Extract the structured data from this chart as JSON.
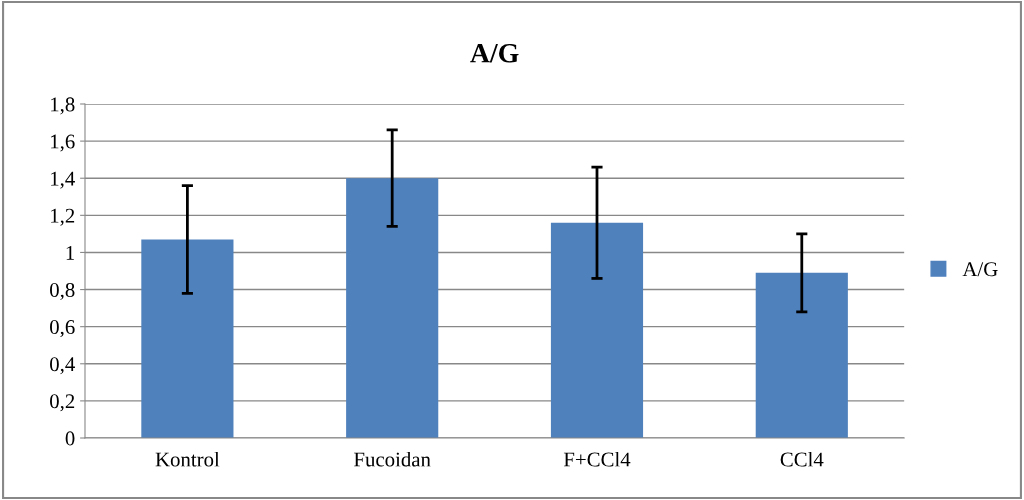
{
  "chart_data": {
    "type": "bar",
    "title": "A/G",
    "categories": [
      "Kontrol",
      "Fucoidan",
      "F+CCl4",
      "CCl4"
    ],
    "series": [
      {
        "name": "A/G",
        "color": "#4f81bd",
        "values": [
          1.07,
          1.4,
          1.16,
          0.89
        ],
        "errors": [
          0.29,
          0.26,
          0.3,
          0.21
        ]
      }
    ],
    "ylim": [
      0,
      1.8
    ],
    "yticks": [
      0,
      {
        "value": 0.2,
        "label": "0,2"
      },
      {
        "value": 0.4,
        "label": "0,4"
      },
      {
        "value": 0.6,
        "label": "0,6"
      },
      {
        "value": 0.8,
        "label": "0,8"
      },
      1,
      {
        "value": 1.2,
        "label": "1,2"
      },
      {
        "value": 1.4,
        "label": "1,4"
      },
      {
        "value": 1.6,
        "label": "1,6"
      },
      {
        "value": 1.8,
        "label": "1,8"
      }
    ],
    "grid": "y",
    "legend": "right"
  }
}
